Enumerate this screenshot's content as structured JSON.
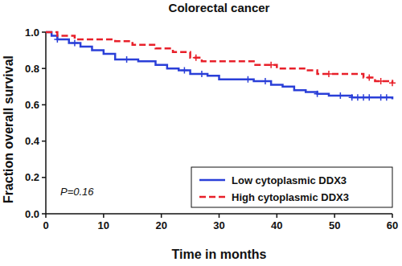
{
  "chart_data": {
    "type": "step",
    "title": "Colorectal cancer",
    "x_label": "Time in months",
    "y_label": "Fraction overall survival",
    "annotation": "P=0.16",
    "legend": "lower right",
    "xlim": [
      0,
      60
    ],
    "xticks": [
      0,
      10,
      20,
      30,
      40,
      50,
      60
    ],
    "ylim": [
      0,
      1
    ],
    "yticks": [
      {
        "value": 0,
        "label": "0.0"
      },
      0.2,
      0.4,
      0.6,
      0.8,
      {
        "value": 1,
        "label": "1.0"
      }
    ],
    "series": [
      {
        "name": "Low cytoplasmic DDX3",
        "color": "#2a3fd8",
        "line_style": "solid",
        "marker": "plus",
        "x": [
          0,
          1,
          2,
          4,
          6,
          8,
          10,
          12,
          16,
          19,
          21,
          23,
          25,
          28,
          30,
          36,
          39,
          41,
          43,
          45,
          47,
          49,
          53,
          60
        ],
        "values": [
          1.0,
          0.98,
          0.96,
          0.94,
          0.92,
          0.9,
          0.88,
          0.85,
          0.84,
          0.82,
          0.8,
          0.79,
          0.77,
          0.76,
          0.74,
          0.73,
          0.71,
          0.7,
          0.68,
          0.67,
          0.66,
          0.65,
          0.64,
          0.63
        ],
        "censored_x": [
          2,
          5,
          14,
          24,
          27,
          35,
          38,
          47,
          51,
          53,
          54,
          55,
          56,
          58,
          59
        ],
        "censored_values": [
          0.96,
          0.94,
          0.85,
          0.79,
          0.77,
          0.74,
          0.73,
          0.66,
          0.65,
          0.64,
          0.64,
          0.64,
          0.64,
          0.64,
          0.64
        ]
      },
      {
        "name": "High cytoplasmic DDX3",
        "color": "#e8202a",
        "line_style": "dashed",
        "marker": "plus",
        "x": [
          0,
          2,
          5,
          12,
          15,
          19,
          22,
          25,
          27,
          36,
          40,
          45,
          47,
          55,
          57,
          60
        ],
        "values": [
          1.0,
          0.98,
          0.96,
          0.95,
          0.93,
          0.91,
          0.89,
          0.86,
          0.84,
          0.82,
          0.8,
          0.79,
          0.77,
          0.75,
          0.73,
          0.72
        ],
        "censored_x": [
          26,
          39,
          49,
          56,
          58,
          60
        ],
        "censored_values": [
          0.86,
          0.82,
          0.77,
          0.75,
          0.73,
          0.72
        ]
      }
    ]
  }
}
